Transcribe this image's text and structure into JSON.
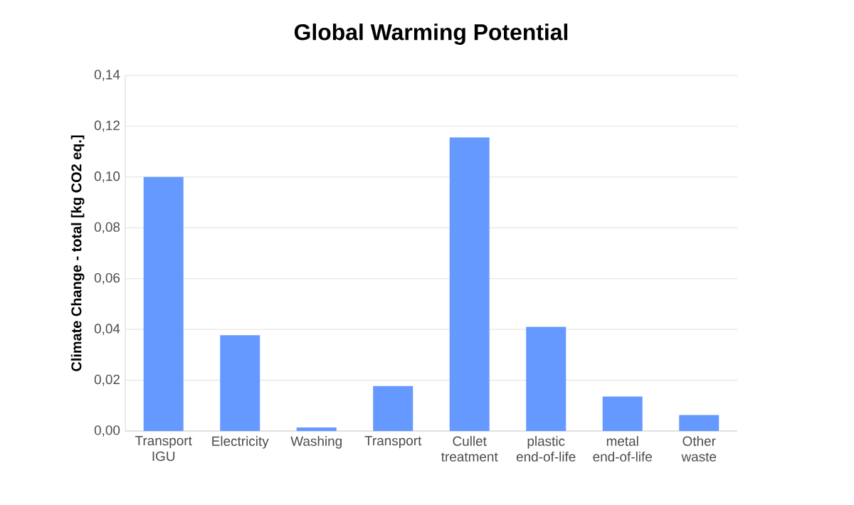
{
  "chart_data": {
    "type": "bar",
    "title": "Global Warming Potential",
    "ylabel": "Climate Change - total [kg CO2 eq.]",
    "categories": [
      "Transport IGU",
      "Electricity",
      "Washing",
      "Transport",
      "Cullet treatment",
      "plastic end-of-life",
      "metal end-of-life",
      "Other waste"
    ],
    "values": [
      0.1,
      0.0377,
      0.0014,
      0.0177,
      0.1156,
      0.041,
      0.0136,
      0.0063
    ],
    "color": "#6699ff",
    "ylim": [
      0,
      0.14
    ],
    "yticks": [
      {
        "value": 0,
        "label": "0,00"
      },
      {
        "value": 0.02,
        "label": "0,02"
      },
      {
        "value": 0.04,
        "label": "0,04"
      },
      {
        "value": 0.06,
        "label": "0,06"
      },
      {
        "value": 0.08,
        "label": "0,08"
      },
      {
        "value": 0.1,
        "label": "0,10"
      },
      {
        "value": 0.12,
        "label": "0,12"
      },
      {
        "value": 0.14,
        "label": "0,14"
      }
    ],
    "grid": "y"
  }
}
